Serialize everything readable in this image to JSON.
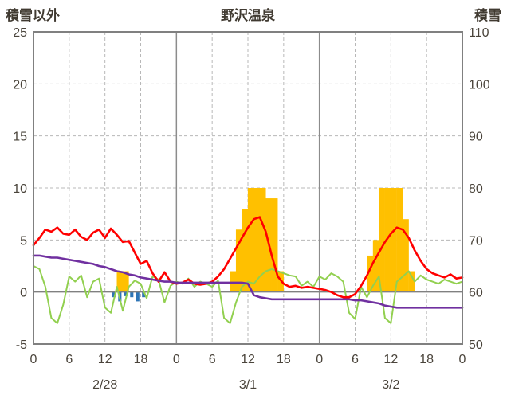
{
  "header": {
    "left_axis_title": "積雪以外",
    "title": "野沢温泉",
    "right_axis_title": "積雪"
  },
  "colors": {
    "snow_bar": "#FFC000",
    "rain_bar": "#2E75B6",
    "red_line": "#FF0000",
    "green_line": "#92D050",
    "purple_line": "#7030A0",
    "frame": "#808080",
    "grid_dashed": "#b8b8b8",
    "grid_day": "#8c8c8c",
    "tick_text": "#4a443b"
  },
  "chart_data": {
    "type": "combo-bar-line",
    "title": "野沢温泉",
    "left_axis": {
      "label": "積雪以外",
      "min": -5,
      "max": 25,
      "step": 5,
      "ticks": [
        25,
        20,
        15,
        10,
        5,
        0,
        -5
      ]
    },
    "right_axis": {
      "label": "積雪",
      "min": 50,
      "max": 110,
      "step": 10,
      "ticks": [
        110,
        100,
        90,
        80,
        70,
        60,
        50
      ]
    },
    "x_hours_total": 72,
    "x_ticks": {
      "positions": [
        0,
        6,
        12,
        18,
        24,
        30,
        36,
        42,
        48,
        54,
        60,
        66,
        72
      ],
      "labels": [
        "0",
        "6",
        "12",
        "18",
        "0",
        "6",
        "12",
        "18",
        "0",
        "6",
        "12",
        "18",
        "0"
      ]
    },
    "days": [
      {
        "label": "2/28",
        "start_hour": 0,
        "center_hour": 12
      },
      {
        "label": "3/1",
        "start_hour": 24,
        "center_hour": 36
      },
      {
        "label": "3/2",
        "start_hour": 48,
        "center_hour": 60
      }
    ],
    "series": [
      {
        "name": "orange-bars",
        "type": "bar",
        "color": "#FFC000",
        "values": [
          0,
          0,
          0,
          0,
          0,
          0,
          0,
          0,
          0,
          0,
          0,
          0,
          0,
          0,
          2,
          2,
          0,
          0,
          0,
          0,
          0,
          0,
          0,
          0,
          0,
          0,
          0,
          0,
          0,
          0,
          0,
          0,
          0,
          2,
          6,
          8,
          10,
          10,
          10,
          9,
          9,
          2,
          0,
          0,
          0,
          0,
          0,
          0,
          0,
          0,
          0,
          0,
          0,
          0,
          0,
          0,
          3.5,
          5,
          10,
          10,
          10,
          10,
          7,
          2,
          0,
          0,
          0,
          0,
          0,
          0,
          0,
          0
        ]
      },
      {
        "name": "blue-bars",
        "type": "bar",
        "color": "#2E75B6",
        "values": [
          0,
          0,
          0,
          0,
          0,
          0,
          0,
          0,
          0,
          0,
          0,
          0,
          0,
          -0.5,
          -0.9,
          -0.4,
          -0.5,
          -0.9,
          -0.5,
          0,
          0,
          0,
          0,
          0,
          0,
          0,
          0,
          0,
          0,
          0,
          0,
          0,
          0,
          0,
          0,
          0,
          0,
          0,
          0,
          0,
          0,
          0,
          0,
          0,
          0,
          0,
          0,
          0,
          0,
          0,
          0,
          0,
          0,
          0,
          0,
          0,
          0,
          0,
          0,
          0,
          0,
          0,
          0,
          0,
          0,
          0,
          0,
          0,
          0,
          0,
          0,
          0
        ]
      },
      {
        "name": "green-line",
        "type": "line",
        "color": "#92D050",
        "values": [
          2.5,
          2.2,
          0.5,
          -2.5,
          -3.0,
          -1.2,
          1.5,
          1.0,
          1.6,
          -0.5,
          1.0,
          1.3,
          -1.5,
          -2.0,
          0.5,
          -1.8,
          0.5,
          1.1,
          0.8,
          -0.6,
          1.5,
          1.2,
          -1.0,
          0.6,
          1.0,
          0.8,
          1.3,
          0.5,
          1.0,
          0.8,
          0.5,
          1.1,
          -2.5,
          -3.0,
          -1.0,
          0.5,
          1.0,
          0.8,
          1.5,
          2.0,
          2.2,
          2.0,
          1.8,
          1.6,
          1.5,
          0.6,
          1.0,
          0.5,
          1.5,
          1.2,
          1.8,
          1.5,
          1.0,
          -2.0,
          -2.6,
          0.5,
          -0.5,
          0.6,
          1.5,
          -2.5,
          -3.0,
          1.0,
          1.5,
          2.0,
          1.0,
          1.6,
          1.2,
          1.0,
          0.8,
          1.2,
          1.0,
          0.8,
          1.0
        ]
      },
      {
        "name": "red-line",
        "type": "line",
        "color": "#FF0000",
        "values": [
          4.5,
          5.2,
          6.0,
          5.8,
          6.2,
          5.6,
          5.5,
          6.0,
          5.3,
          5.0,
          5.7,
          6.0,
          5.2,
          6.1,
          5.5,
          4.8,
          4.9,
          3.8,
          2.7,
          3.0,
          1.8,
          1.0,
          1.9,
          1.0,
          0.8,
          0.9,
          1.2,
          0.8,
          0.7,
          0.8,
          1.0,
          1.5,
          2.2,
          3.2,
          4.2,
          5.2,
          6.2,
          7.0,
          7.2,
          5.8,
          3.5,
          1.5,
          0.8,
          0.5,
          0.6,
          0.4,
          0.5,
          0.4,
          0.3,
          0.2,
          0.0,
          -0.3,
          -0.5,
          -0.5,
          -0.2,
          0.6,
          1.6,
          2.8,
          3.8,
          4.8,
          5.6,
          6.2,
          6.0,
          5.2,
          4.0,
          3.0,
          2.2,
          1.8,
          1.6,
          1.4,
          1.7,
          1.3,
          1.4
        ]
      },
      {
        "name": "purple-line",
        "type": "line",
        "color": "#7030A0",
        "values": [
          3.5,
          3.5,
          3.4,
          3.3,
          3.3,
          3.2,
          3.1,
          3.0,
          2.9,
          2.8,
          2.7,
          2.5,
          2.4,
          2.2,
          2.0,
          1.9,
          1.7,
          1.6,
          1.4,
          1.3,
          1.2,
          1.1,
          1.0,
          1.0,
          0.9,
          0.9,
          0.9,
          0.9,
          0.9,
          0.9,
          0.9,
          0.9,
          0.9,
          0.9,
          0.9,
          0.9,
          0.8,
          -0.3,
          -0.5,
          -0.6,
          -0.7,
          -0.7,
          -0.7,
          -0.7,
          -0.7,
          -0.7,
          -0.7,
          -0.7,
          -0.7,
          -0.7,
          -0.7,
          -0.7,
          -0.7,
          -0.7,
          -0.8,
          -0.8,
          -0.9,
          -1.0,
          -1.1,
          -1.3,
          -1.4,
          -1.5,
          -1.5,
          -1.5,
          -1.5,
          -1.5,
          -1.5,
          -1.5,
          -1.5,
          -1.5,
          -1.5,
          -1.5,
          -1.5
        ]
      }
    ]
  }
}
